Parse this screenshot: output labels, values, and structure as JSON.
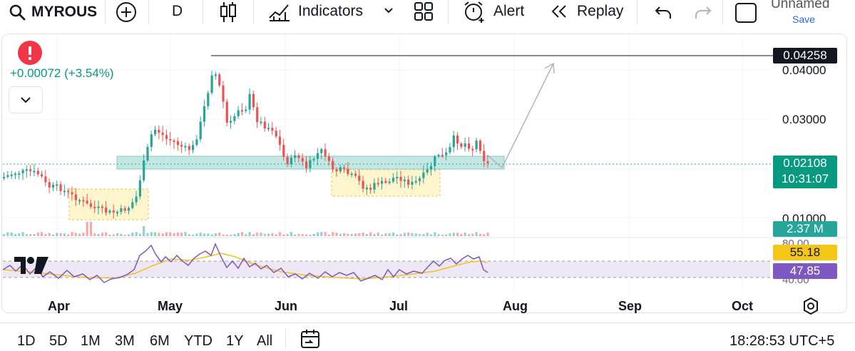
{
  "toolbar": {
    "symbol": "MYROUS",
    "interval": "D",
    "indicators_label": "Indicators",
    "alert_label": "Alert",
    "replay_label": "Replay",
    "layout_name": "Unnamed",
    "save_label": "Save"
  },
  "legend": {
    "change": "+0.00072 (+3.54%)"
  },
  "price_axis": {
    "labels": [
      "0.04000",
      "0.03000",
      "0.01000"
    ]
  },
  "badges": {
    "high_line_price": "0.04258",
    "last_price": "0.02108",
    "countdown": "10:31:07",
    "volume": "2.37 M",
    "rsi_ma": "55.18",
    "rsi": "47.85"
  },
  "rsi_axis": {
    "labels": [
      "80.00",
      "40.00"
    ]
  },
  "time_axis": {
    "labels": [
      "Apr",
      "May",
      "Jun",
      "Jul",
      "Aug",
      "Sep",
      "Oct"
    ]
  },
  "bottom_bar": {
    "ranges": [
      "1D",
      "5D",
      "1M",
      "3M",
      "6M",
      "YTD",
      "1Y",
      "All"
    ],
    "clock": "18:28:53 UTC+5"
  },
  "colors": {
    "up": "#26a69a",
    "down": "#ef5350",
    "accent": "#2962ff",
    "rsi_line": "#7e57c2",
    "rsi_ma_line": "#f0c419",
    "volume_badge": "#26a69a",
    "rsi_band": "#ede7f6",
    "support_zone": "#b2dfdb",
    "accumulation_zone": "#fff3c4"
  },
  "icons": {
    "search": "search-icon",
    "add": "plus-circle-icon",
    "candles": "candlestick-icon",
    "indicators": "indicators-icon",
    "layouts": "grid-icon",
    "alert": "alarm-clock-icon",
    "replay": "rewind-icon",
    "undo": "undo-icon",
    "redo": "redo-icon",
    "layout_box": "layout-box-icon",
    "warning": "exclamation-icon",
    "collapse": "chevron-down-icon",
    "logo": "tradingview-logo",
    "settings": "gear-icon",
    "date_range": "calendar-icon"
  }
}
